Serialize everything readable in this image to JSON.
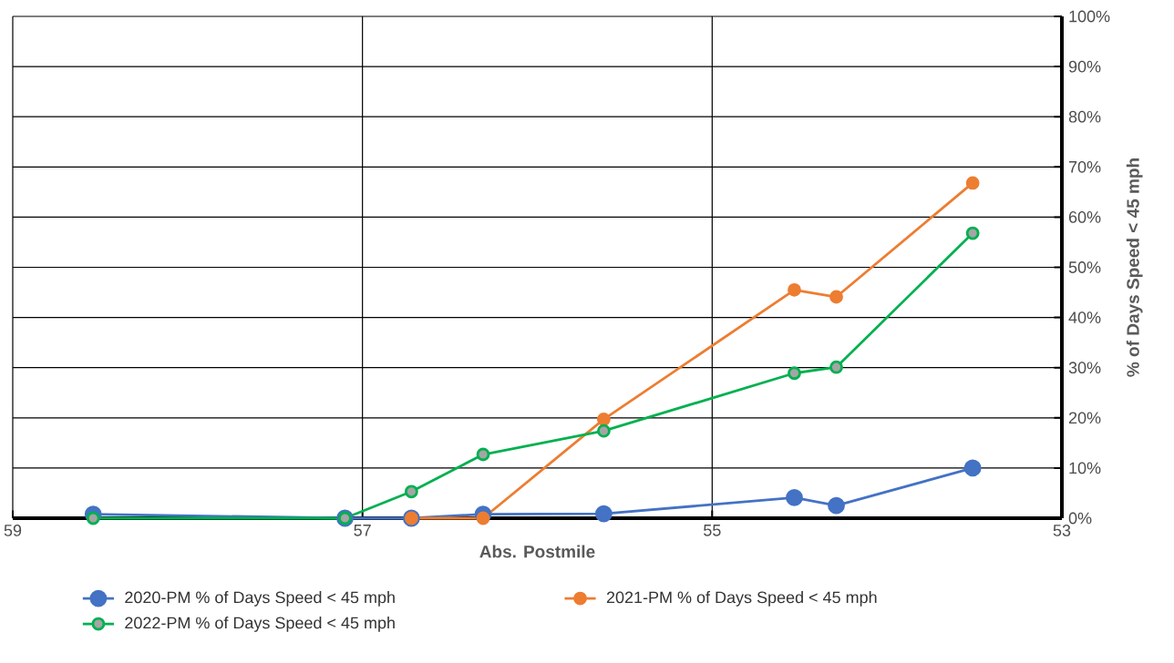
{
  "chart_data": {
    "type": "line",
    "xlabel": "Abs. Postmile",
    "ylabel": "% of Days Speed < 45 mph",
    "xlim": [
      59,
      53
    ],
    "xticks": [
      59,
      57,
      55,
      53
    ],
    "ylim": [
      0,
      100
    ],
    "yticks": [
      {
        "value": 0,
        "label": "0%"
      },
      {
        "value": 10,
        "label": "10%"
      },
      {
        "value": 20,
        "label": "20%"
      },
      {
        "value": 30,
        "label": "30%"
      },
      {
        "value": 40,
        "label": "40%"
      },
      {
        "value": 50,
        "label": "50%"
      },
      {
        "value": 60,
        "label": "60%"
      },
      {
        "value": 70,
        "label": "70%"
      },
      {
        "value": 80,
        "label": "80%"
      },
      {
        "value": 90,
        "label": "90%"
      },
      {
        "value": 100,
        "label": "100%"
      }
    ],
    "grid": true,
    "legend": "bottom",
    "marker": "circle",
    "series": [
      {
        "name": "2020-PM % of Days Speed < 45 mph",
        "color": "#4472c4",
        "x": [
          58.54,
          57.1,
          56.72,
          56.31,
          55.62,
          54.53,
          54.29,
          53.51
        ],
        "values": [
          0.8,
          0,
          0,
          0.8,
          0.9,
          4.1,
          2.5,
          10
        ]
      },
      {
        "name": "2021-PM % of Days Speed < 45 mph",
        "color": "#ed7d31",
        "x": [
          56.72,
          56.31,
          55.62,
          54.53,
          54.29,
          53.51
        ],
        "values": [
          0,
          0,
          19.7,
          45.5,
          44.1,
          66.8
        ]
      },
      {
        "name": "2022-PM % of Days Speed < 45 mph",
        "color": "#00b050",
        "x": [
          58.54,
          57.1,
          56.72,
          56.31,
          55.62,
          54.53,
          54.29,
          53.51
        ],
        "values": [
          0,
          0,
          5.3,
          12.7,
          17.4,
          28.9,
          30.1,
          56.8
        ]
      }
    ]
  }
}
